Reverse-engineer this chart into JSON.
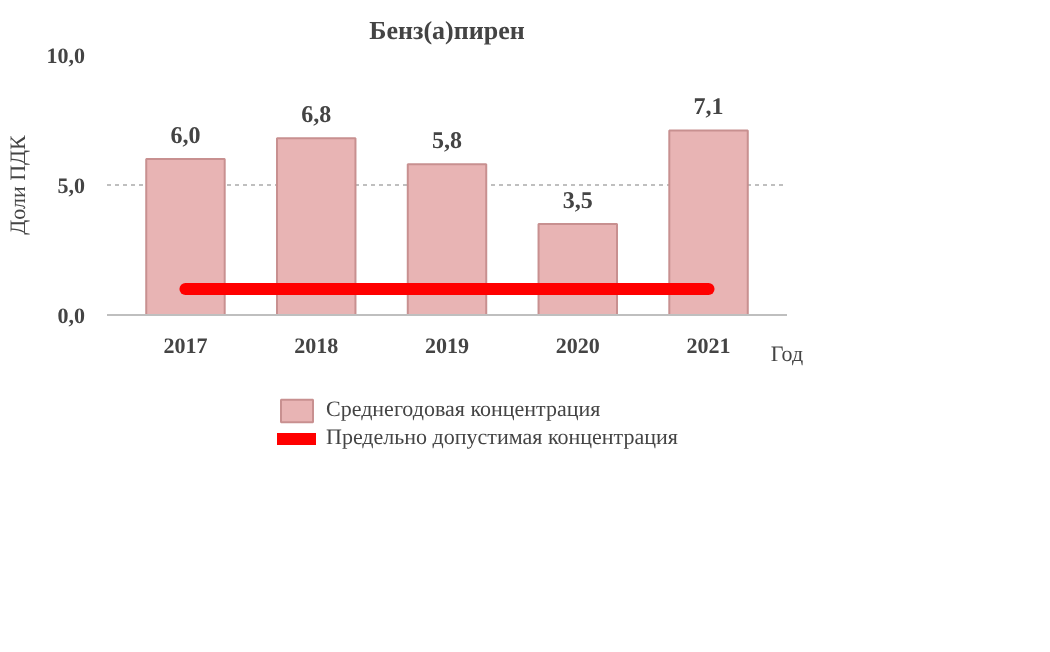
{
  "chart_data": {
    "type": "bar",
    "title": "Бенз(а)пирен",
    "xlabel": "Год",
    "ylabel": "Доли ПДК",
    "categories": [
      "2017",
      "2018",
      "2019",
      "2020",
      "2021"
    ],
    "series": [
      {
        "name": "Среднегодовая концентрация",
        "color": "#e8b4b4",
        "values": [
          6.0,
          6.8,
          5.8,
          3.5,
          7.1
        ],
        "value_labels": [
          "6,0",
          "6,8",
          "5,8",
          "3,5",
          "7,1"
        ]
      },
      {
        "name": "Предельно допустимая концентрация",
        "type": "line",
        "color": "#ff0000",
        "values": [
          1,
          1,
          1,
          1,
          1
        ]
      }
    ],
    "ylim": [
      0,
      10
    ],
    "yticks": [
      {
        "value": 0,
        "label": "0,0"
      },
      {
        "value": 5,
        "label": "5,0"
      },
      {
        "value": 10,
        "label": "10,0"
      }
    ],
    "grid": "y",
    "legend": "bottom"
  }
}
